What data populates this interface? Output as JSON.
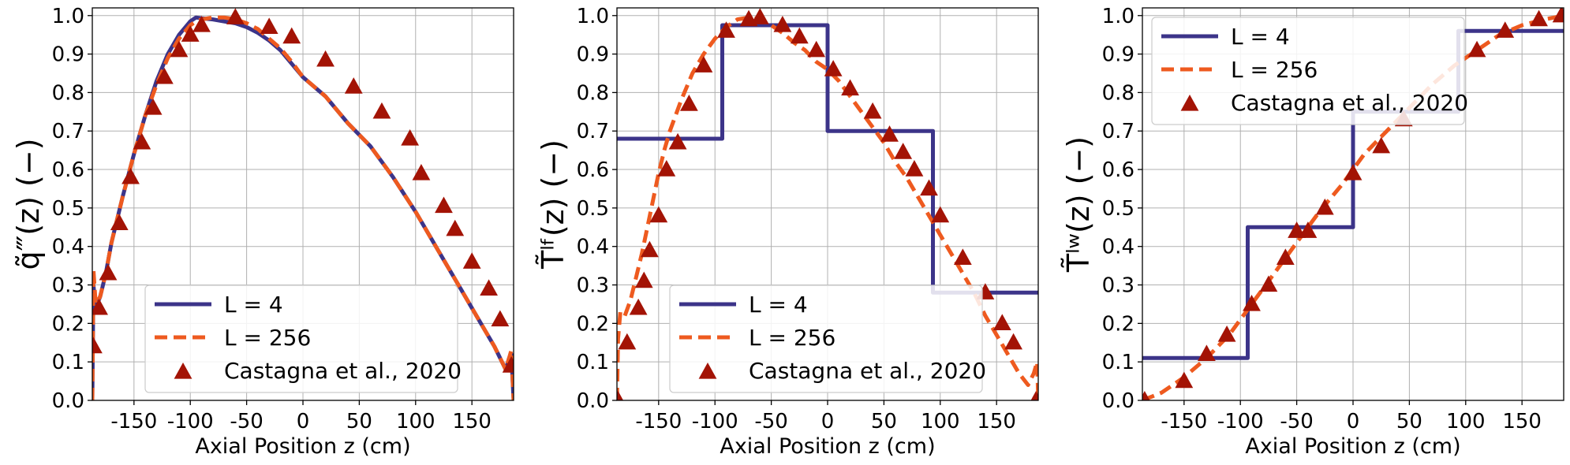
{
  "colors": {
    "L4": "#3c3489",
    "L256": "#ee5a1f",
    "castagna": "#a31305",
    "grid": "#b0b0b0"
  },
  "legend_labels": {
    "L4": "L = 4",
    "L256": "L = 256",
    "castagna": "Castagna et al., 2020"
  },
  "chart_data": [
    {
      "type": "line",
      "ylabel": "q̃‴(z) (−)",
      "xlabel": "Axial Position z (cm)",
      "xlim": [
        -187,
        187
      ],
      "ylim": [
        0,
        1.02
      ],
      "xticks": [
        -150,
        -100,
        -50,
        0,
        50,
        100,
        150
      ],
      "yticks": [
        0.0,
        0.1,
        0.2,
        0.3,
        0.4,
        0.5,
        0.6,
        0.7,
        0.8,
        0.9,
        1.0
      ],
      "grid": true,
      "legend_position": "bottom-center",
      "series": [
        {
          "name": "L = 4",
          "style": "solid",
          "x": [
            -187,
            -186,
            -184,
            -180,
            -175,
            -170,
            -160,
            -150,
            -140,
            -130,
            -120,
            -110,
            -100,
            -95,
            -90,
            -80,
            -70,
            -60,
            -50,
            -40,
            -30,
            -20,
            -10,
            0,
            20,
            40,
            60,
            80,
            100,
            120,
            140,
            160,
            170,
            175,
            180,
            183,
            185,
            187
          ],
          "y": [
            0.0,
            0.3,
            0.24,
            0.27,
            0.33,
            0.41,
            0.53,
            0.64,
            0.74,
            0.83,
            0.9,
            0.95,
            0.985,
            0.995,
            0.993,
            0.99,
            0.985,
            0.98,
            0.97,
            0.955,
            0.935,
            0.91,
            0.875,
            0.84,
            0.79,
            0.72,
            0.66,
            0.58,
            0.49,
            0.39,
            0.29,
            0.19,
            0.14,
            0.11,
            0.08,
            0.11,
            0.12,
            0.0
          ]
        },
        {
          "name": "L = 256",
          "style": "dashed",
          "x": [
            -187,
            -186,
            -184,
            -180,
            -175,
            -170,
            -160,
            -150,
            -140,
            -130,
            -120,
            -110,
            -100,
            -95,
            -90,
            -80,
            -70,
            -60,
            -50,
            -40,
            -30,
            -20,
            -10,
            0,
            20,
            40,
            60,
            80,
            100,
            120,
            140,
            160,
            170,
            175,
            180,
            183,
            185,
            187
          ],
          "y": [
            0.0,
            0.34,
            0.25,
            0.27,
            0.33,
            0.41,
            0.53,
            0.64,
            0.74,
            0.82,
            0.89,
            0.94,
            0.975,
            0.985,
            0.99,
            0.995,
            0.995,
            0.99,
            0.98,
            0.965,
            0.94,
            0.915,
            0.88,
            0.84,
            0.79,
            0.72,
            0.66,
            0.58,
            0.49,
            0.39,
            0.29,
            0.19,
            0.14,
            0.11,
            0.08,
            0.11,
            0.13,
            0.0
          ]
        },
        {
          "name": "Castagna et al., 2020",
          "style": "triangle",
          "x": [
            -186,
            -181,
            -173,
            -163,
            -153,
            -143,
            -133,
            -123,
            -110,
            -100,
            -90,
            -60,
            -30,
            -10,
            20,
            45,
            70,
            95,
            105,
            125,
            135,
            150,
            165,
            175,
            185
          ],
          "y": [
            0.14,
            0.24,
            0.33,
            0.46,
            0.58,
            0.67,
            0.76,
            0.84,
            0.91,
            0.95,
            0.975,
            0.995,
            0.97,
            0.945,
            0.885,
            0.815,
            0.75,
            0.68,
            0.59,
            0.505,
            0.445,
            0.36,
            0.29,
            0.21,
            0.09
          ]
        }
      ]
    },
    {
      "type": "line",
      "ylabel": "T̃ˡᶠ(z) (−)",
      "xlabel": "Axial Position z (cm)",
      "xlim": [
        -187,
        187
      ],
      "ylim": [
        0,
        1.02
      ],
      "xticks": [
        -150,
        -100,
        -50,
        0,
        50,
        100,
        150
      ],
      "yticks": [
        0.0,
        0.1,
        0.2,
        0.3,
        0.4,
        0.5,
        0.6,
        0.7,
        0.8,
        0.9,
        1.0
      ],
      "grid": true,
      "legend_position": "bottom-center",
      "series": [
        {
          "name": "L = 4",
          "style": "solid",
          "x": [
            -187,
            -93.5,
            -93.5,
            0,
            0,
            93.5,
            93.5,
            187
          ],
          "y": [
            0.68,
            0.68,
            0.975,
            0.975,
            0.7,
            0.7,
            0.28,
            0.28
          ]
        },
        {
          "name": "L = 256",
          "style": "dashed",
          "x": [
            -187,
            -186,
            -184,
            -180,
            -175,
            -170,
            -165,
            -160,
            -155,
            -150,
            -145,
            -140,
            -130,
            -120,
            -110,
            -100,
            -90,
            -80,
            -70,
            -60,
            -50,
            -40,
            -30,
            -20,
            -10,
            0,
            10,
            20,
            30,
            40,
            50,
            60,
            70,
            80,
            90,
            100,
            110,
            120,
            130,
            140,
            150,
            160,
            170,
            178,
            183,
            186,
            187
          ],
          "y": [
            0.0,
            0.16,
            0.23,
            0.22,
            0.26,
            0.32,
            0.38,
            0.45,
            0.52,
            0.59,
            0.65,
            0.7,
            0.78,
            0.85,
            0.9,
            0.94,
            0.97,
            0.99,
            0.995,
            0.99,
            0.975,
            0.955,
            0.93,
            0.91,
            0.88,
            0.86,
            0.83,
            0.79,
            0.75,
            0.71,
            0.67,
            0.62,
            0.58,
            0.53,
            0.48,
            0.43,
            0.38,
            0.33,
            0.28,
            0.22,
            0.17,
            0.12,
            0.07,
            0.04,
            0.07,
            0.1,
            0.0
          ]
        },
        {
          "name": "Castagna et al., 2020",
          "style": "triangle",
          "x": [
            -186,
            -178,
            -168,
            -163,
            -158,
            -150,
            -143,
            -133,
            -123,
            -110,
            -90,
            -70,
            -60,
            -40,
            -25,
            -10,
            5,
            20,
            40,
            55,
            67,
            77,
            90,
            100,
            120,
            140,
            155,
            165,
            185
          ],
          "y": [
            0.0,
            0.15,
            0.24,
            0.31,
            0.39,
            0.48,
            0.6,
            0.67,
            0.77,
            0.87,
            0.96,
            0.99,
            0.995,
            0.975,
            0.945,
            0.91,
            0.86,
            0.81,
            0.75,
            0.69,
            0.645,
            0.6,
            0.55,
            0.48,
            0.37,
            0.28,
            0.2,
            0.15,
            0.0
          ]
        }
      ]
    },
    {
      "type": "line",
      "ylabel": "T̃ˡʷ(z) (−)",
      "xlabel": "Axial Position z (cm)",
      "xlim": [
        -187,
        187
      ],
      "ylim": [
        0,
        1.02
      ],
      "xticks": [
        -150,
        -100,
        -50,
        0,
        50,
        100,
        150
      ],
      "yticks": [
        0.0,
        0.1,
        0.2,
        0.3,
        0.4,
        0.5,
        0.6,
        0.7,
        0.8,
        0.9,
        1.0
      ],
      "grid": true,
      "legend_position": "upper-left",
      "series": [
        {
          "name": "L = 4",
          "style": "solid",
          "x": [
            -187,
            -93.5,
            -93.5,
            0,
            0,
            93.5,
            93.5,
            187
          ],
          "y": [
            0.11,
            0.11,
            0.45,
            0.45,
            0.75,
            0.75,
            0.96,
            0.96
          ]
        },
        {
          "name": "L = 256",
          "style": "dashed",
          "x": [
            -187,
            -170,
            -150,
            -130,
            -110,
            -90,
            -70,
            -50,
            -30,
            -10,
            0,
            10,
            30,
            50,
            70,
            90,
            110,
            130,
            150,
            170,
            187
          ],
          "y": [
            0.0,
            0.02,
            0.06,
            0.11,
            0.17,
            0.25,
            0.33,
            0.41,
            0.49,
            0.56,
            0.6,
            0.64,
            0.7,
            0.76,
            0.82,
            0.87,
            0.91,
            0.95,
            0.975,
            0.99,
            1.0
          ]
        },
        {
          "name": "Castagna et al., 2020",
          "style": "triangle",
          "x": [
            -185,
            -150,
            -130,
            -112,
            -90,
            -75,
            -60,
            -50,
            -40,
            -25,
            0,
            25,
            45,
            110,
            135,
            165,
            185
          ],
          "y": [
            0.0,
            0.05,
            0.12,
            0.17,
            0.25,
            0.3,
            0.37,
            0.44,
            0.44,
            0.5,
            0.59,
            0.66,
            0.73,
            0.91,
            0.96,
            0.99,
            1.0
          ]
        }
      ]
    }
  ]
}
